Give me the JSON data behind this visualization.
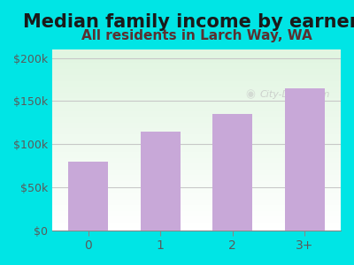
{
  "categories": [
    "0",
    "1",
    "2",
    "3+"
  ],
  "values": [
    80000,
    115000,
    135000,
    165000
  ],
  "bar_color": "#c8a8d8",
  "title": "Median family income by earners",
  "subtitle": "All residents in Larch Way, WA",
  "title_color": "#1a1a1a",
  "subtitle_color": "#5a3030",
  "ylabel_ticks": [
    "$0",
    "$50k",
    "$100k",
    "$150k",
    "$200k"
  ],
  "ytick_vals": [
    0,
    50000,
    100000,
    150000,
    200000
  ],
  "ylim": [
    0,
    210000
  ],
  "outer_bg": "#00e5e5",
  "watermark": "City-Data.com",
  "watermark_color": "#c0c0c0",
  "grid_color": "#c8c8c8",
  "title_fontsize": 15,
  "subtitle_fontsize": 11
}
